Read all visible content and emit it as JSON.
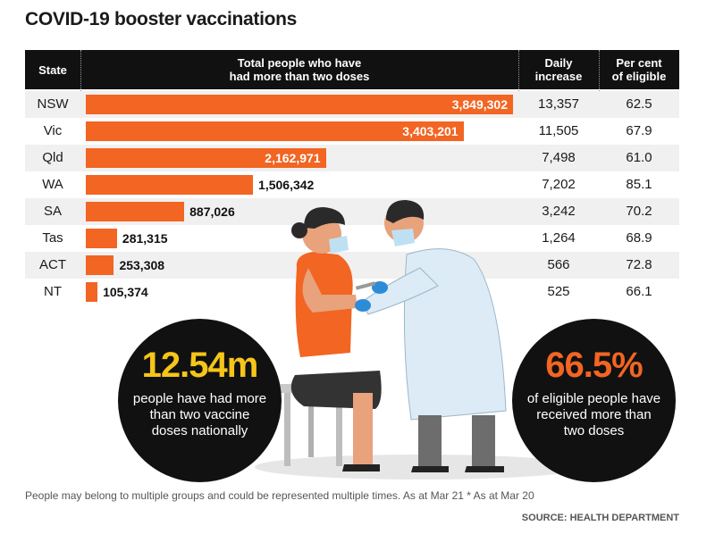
{
  "title": "COVID-19 booster vaccinations",
  "header": {
    "state": "State",
    "total": "Total people who have\nhad more than two doses",
    "daily": "Daily\nincrease",
    "percent": "Per cent\nof eligible"
  },
  "chart_data": {
    "type": "bar",
    "orientation": "horizontal",
    "categories": [
      "NSW",
      "Vic",
      "Qld",
      "WA",
      "SA",
      "Tas",
      "ACT",
      "NT"
    ],
    "values": [
      3849302,
      3403201,
      2162971,
      1506342,
      887026,
      281315,
      253308,
      105374
    ],
    "value_labels": [
      "3,849,302",
      "3,403,201",
      "2,162,971",
      "1,506,342",
      "887,026",
      "281,315",
      "253,308",
      "105,374"
    ],
    "daily_increase": [
      "13,357",
      "11,505",
      "7,498",
      "7,202",
      "3,242",
      "1,264",
      "566",
      "525"
    ],
    "percent_eligible": [
      "62.5",
      "67.9",
      "61.0",
      "85.1",
      "70.2",
      "68.9",
      "72.8",
      "66.1"
    ],
    "bar_color": "#f26522"
  },
  "callouts": {
    "left_big": "12.54m",
    "left_text": "people have had more than two vaccine doses nationally",
    "right_big": "66.5%",
    "right_text": "of eligible people have received more than two doses"
  },
  "colors": {
    "accent_yellow": "#f5c518",
    "accent_orange": "#f26522",
    "header_bg": "#111111"
  },
  "footnote": "People may belong to multiple groups and could be represented multiple times. As at Mar 21  * As at Mar 20",
  "source": "SOURCE: HEALTH DEPARTMENT"
}
